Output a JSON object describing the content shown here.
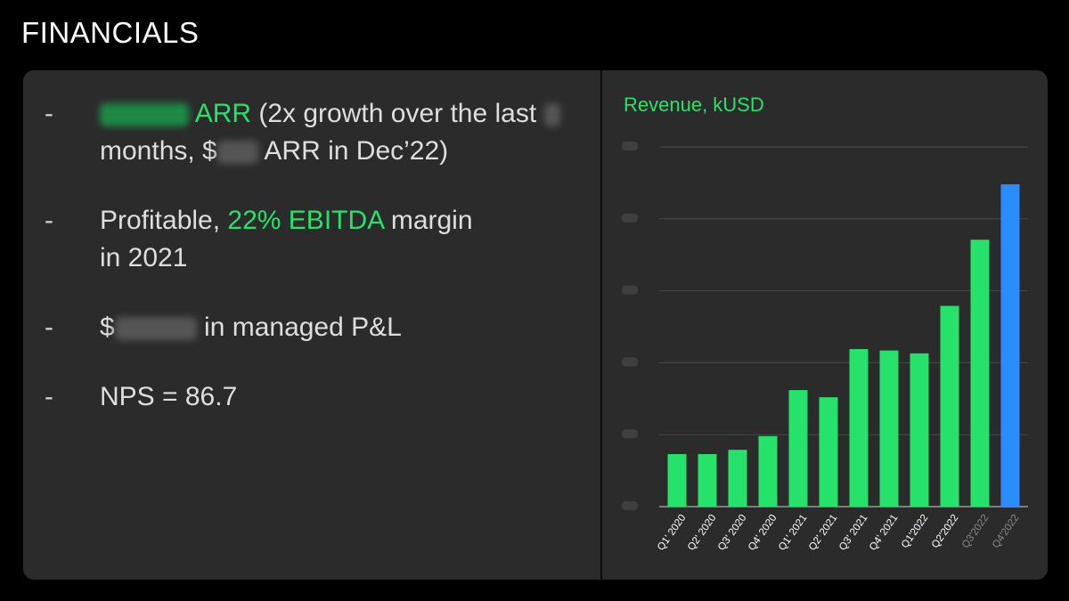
{
  "page": {
    "title": "FINANCIALS"
  },
  "bullets": [
    {
      "dash": "-",
      "line1_after_blur": "ARR",
      "line1_rest": " (2x growth over the last ",
      "line2_a": "months, $",
      "line2_b": " ARR in Dec’22)"
    },
    {
      "dash": "-",
      "prefix": "Profitable, ",
      "highlight": "22% EBITDA",
      "suffix": " margin",
      "line2": "in 2021"
    },
    {
      "dash": "-",
      "prefix": "$",
      "suffix": " in managed P&L"
    },
    {
      "dash": "-",
      "text": "NPS = 86.7"
    }
  ],
  "colors": {
    "accent_green": "#27e26a",
    "forecast_blue": "#2a8cff",
    "panel_bg": "#2b2b2b",
    "page_bg": "#000000"
  },
  "chart_data": {
    "type": "bar",
    "title": "Revenue, kUSD",
    "categories": [
      "Q1' 2020",
      "Q2' 2020",
      "Q3' 2020",
      "Q4' 2020",
      "Q1' 2021",
      "Q2' 2021",
      "Q3' 2021",
      "Q4' 2021",
      "Q1'2022",
      "Q2'2022",
      "Q3'2022",
      "Q4'2022"
    ],
    "values": [
      73,
      73,
      79,
      98,
      162,
      152,
      219,
      217,
      213,
      279,
      371,
      448
    ],
    "bar_colors": [
      "green",
      "green",
      "green",
      "green",
      "green",
      "green",
      "green",
      "green",
      "green",
      "green",
      "green",
      "blue"
    ],
    "label_colors": [
      "white",
      "white",
      "white",
      "white",
      "white",
      "white",
      "white",
      "white",
      "white",
      "white",
      "grey",
      "grey"
    ],
    "ylim": [
      0,
      500
    ],
    "yticks": [
      0,
      100,
      200,
      300,
      400,
      500
    ],
    "ytick_labels_hidden": true,
    "grid": true,
    "xlabel": "",
    "ylabel": ""
  }
}
